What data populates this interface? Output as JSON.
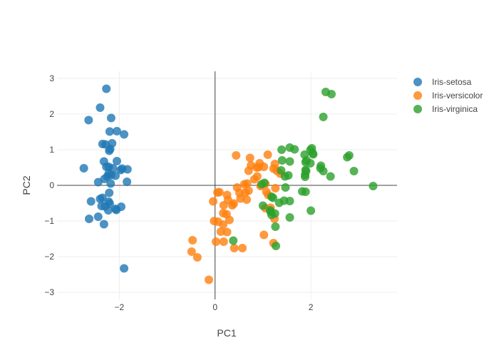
{
  "colors": {
    "Iris-setosa": "#1f77b4",
    "Iris-versicolor": "#ff7f0e",
    "Iris-virginica": "#2ca02c",
    "grid": "#eeeeee",
    "zeroline": "#444444",
    "text": "#444444"
  },
  "chart_data": {
    "type": "scatter",
    "title": "",
    "xlabel": "PC1",
    "ylabel": "PC2",
    "xlim": [
      -3.3,
      3.8
    ],
    "ylim": [
      -3.2,
      3.2
    ],
    "xticks": [
      -2,
      0,
      2
    ],
    "yticks": [
      -3,
      -2,
      -1,
      0,
      1,
      2,
      3
    ],
    "grid": true,
    "legend_position": "top-right",
    "series": [
      {
        "name": "Iris-setosa",
        "points": [
          [
            -2.27,
            2.71
          ],
          [
            -2.4,
            2.18
          ],
          [
            -2.64,
            1.83
          ],
          [
            -2.17,
            1.89
          ],
          [
            -2.2,
            1.51
          ],
          [
            -2.05,
            1.52
          ],
          [
            -1.9,
            1.43
          ],
          [
            -2.35,
            1.16
          ],
          [
            -2.29,
            1.15
          ],
          [
            -2.15,
            1.18
          ],
          [
            -2.19,
            1.02
          ],
          [
            -2.21,
            0.97
          ],
          [
            -2.05,
            0.68
          ],
          [
            -2.32,
            0.67
          ],
          [
            -1.94,
            0.47
          ],
          [
            -2.27,
            0.52
          ],
          [
            -2.22,
            0.52
          ],
          [
            -2.13,
            0.48
          ],
          [
            -1.97,
            0.43
          ],
          [
            -1.83,
            0.45
          ],
          [
            -2.74,
            0.48
          ],
          [
            -2.22,
            0.33
          ],
          [
            -2.17,
            0.29
          ],
          [
            -2.25,
            0.25
          ],
          [
            -2.08,
            0.27
          ],
          [
            -2.31,
            0.18
          ],
          [
            -2.44,
            0.09
          ],
          [
            -2.18,
            0.05
          ],
          [
            -1.84,
            0.1
          ],
          [
            -2.21,
            -0.21
          ],
          [
            -2.35,
            -0.35
          ],
          [
            -2.4,
            -0.38
          ],
          [
            -2.22,
            -0.46
          ],
          [
            -2.2,
            -0.51
          ],
          [
            -2.37,
            -0.58
          ],
          [
            -2.59,
            -0.45
          ],
          [
            -2.3,
            -0.59
          ],
          [
            -2.08,
            -0.66
          ],
          [
            -2.06,
            -0.69
          ],
          [
            -1.96,
            -0.6
          ],
          [
            -2.23,
            -0.7
          ],
          [
            -2.44,
            -0.88
          ],
          [
            -2.63,
            -0.94
          ],
          [
            -2.32,
            -1.09
          ],
          [
            -1.9,
            -2.33
          ]
        ]
      },
      {
        "name": "Iris-versicolor",
        "points": [
          [
            0.44,
            0.84
          ],
          [
            1.1,
            0.86
          ],
          [
            0.73,
            0.77
          ],
          [
            0.93,
            0.62
          ],
          [
            1.25,
            0.6
          ],
          [
            0.75,
            0.56
          ],
          [
            0.7,
            0.41
          ],
          [
            0.91,
            0.51
          ],
          [
            1.02,
            0.52
          ],
          [
            0.87,
            0.5
          ],
          [
            1.22,
            0.47
          ],
          [
            1.29,
            0.41
          ],
          [
            1.36,
            0.33
          ],
          [
            0.88,
            0.25
          ],
          [
            0.82,
            0.17
          ],
          [
            0.67,
            0.05
          ],
          [
            0.61,
            0.03
          ],
          [
            1.05,
            0.04
          ],
          [
            0.95,
            -0.02
          ],
          [
            0.46,
            -0.06
          ],
          [
            0.7,
            -0.15
          ],
          [
            0.63,
            -0.2
          ],
          [
            0.51,
            -0.21
          ],
          [
            1.26,
            -0.08
          ],
          [
            0.09,
            -0.19
          ],
          [
            0.05,
            -0.2
          ],
          [
            1.07,
            -0.18
          ],
          [
            1.11,
            -0.27
          ],
          [
            0.25,
            -0.27
          ],
          [
            0.27,
            -0.41
          ],
          [
            0.53,
            -0.37
          ],
          [
            0.39,
            -0.51
          ],
          [
            1.05,
            -0.64
          ],
          [
            0.66,
            -0.4
          ],
          [
            0.18,
            -0.56
          ],
          [
            0.36,
            -0.56
          ],
          [
            0.17,
            -0.78
          ],
          [
            0.24,
            -0.81
          ],
          [
            0.3,
            -0.97
          ],
          [
            -0.04,
            -0.45
          ],
          [
            0.17,
            -1.1
          ],
          [
            -0.02,
            -1.0
          ],
          [
            0.06,
            -1.02
          ],
          [
            0.25,
            -1.31
          ],
          [
            0.12,
            -1.3
          ],
          [
            1.24,
            -0.94
          ],
          [
            1.16,
            -0.63
          ],
          [
            1.02,
            -1.39
          ],
          [
            0.18,
            -1.58
          ],
          [
            0.02,
            -1.58
          ],
          [
            0.4,
            -1.76
          ],
          [
            0.57,
            -1.76
          ],
          [
            -0.47,
            -1.54
          ],
          [
            -0.49,
            -1.86
          ],
          [
            -0.37,
            -2.02
          ],
          [
            -0.13,
            -2.65
          ],
          [
            1.22,
            -1.62
          ]
        ]
      },
      {
        "name": "Iris-virginica",
        "points": [
          [
            2.31,
            2.62
          ],
          [
            2.43,
            2.56
          ],
          [
            2.26,
            1.92
          ],
          [
            1.56,
            1.06
          ],
          [
            1.66,
            1.01
          ],
          [
            2.02,
            1.04
          ],
          [
            1.39,
            1.0
          ],
          [
            1.99,
            0.99
          ],
          [
            2.04,
            0.9
          ],
          [
            2.05,
            0.87
          ],
          [
            1.87,
            0.86
          ],
          [
            2.76,
            0.79
          ],
          [
            2.8,
            0.84
          ],
          [
            1.4,
            0.7
          ],
          [
            1.56,
            0.67
          ],
          [
            1.91,
            0.7
          ],
          [
            1.89,
            0.65
          ],
          [
            1.99,
            0.62
          ],
          [
            2.21,
            0.55
          ],
          [
            2.2,
            0.48
          ],
          [
            1.89,
            0.43
          ],
          [
            2.26,
            0.4
          ],
          [
            2.9,
            0.4
          ],
          [
            1.9,
            0.4
          ],
          [
            1.38,
            0.42
          ],
          [
            1.88,
            0.3
          ],
          [
            1.88,
            0.24
          ],
          [
            2.41,
            0.25
          ],
          [
            1.53,
            0.28
          ],
          [
            1.46,
            0.25
          ],
          [
            0.97,
            0.03
          ],
          [
            1.03,
            0.07
          ],
          [
            1.47,
            -0.06
          ],
          [
            3.3,
            -0.02
          ],
          [
            1.82,
            -0.17
          ],
          [
            1.89,
            -0.18
          ],
          [
            1.18,
            -0.32
          ],
          [
            1.21,
            -0.35
          ],
          [
            1.34,
            -0.49
          ],
          [
            1.44,
            -0.43
          ],
          [
            1.56,
            -0.44
          ],
          [
            1.0,
            -0.57
          ],
          [
            2.0,
            -0.71
          ],
          [
            1.15,
            -0.7
          ],
          [
            1.25,
            -0.79
          ],
          [
            1.18,
            -0.83
          ],
          [
            1.56,
            -0.9
          ],
          [
            1.26,
            -1.16
          ],
          [
            0.38,
            -1.55
          ],
          [
            1.27,
            -1.7
          ],
          [
            1.16,
            -0.74
          ]
        ]
      }
    ]
  }
}
